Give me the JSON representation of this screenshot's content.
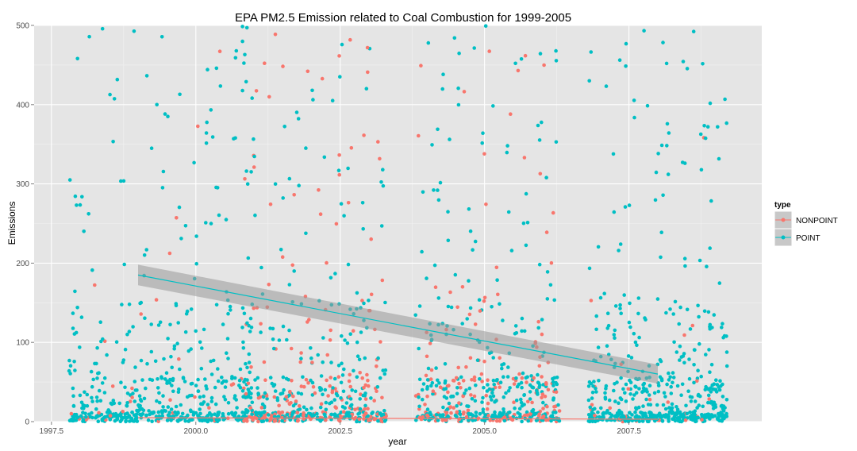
{
  "chart_data": {
    "type": "scatter",
    "title": "EPA PM2.5 Emission related to Coal Combustion for 1999-2005",
    "xlabel": "year",
    "ylabel": "Emissions",
    "xlim": [
      1997.2,
      2009.8
    ],
    "ylim": [
      0,
      500
    ],
    "x_ticks": [
      1997.5,
      2000.0,
      2002.5,
      2005.0,
      2007.5
    ],
    "x_tick_labels": [
      "1997.5",
      "2000.0",
      "2002.5",
      "2005.0",
      "2007.5"
    ],
    "y_ticks": [
      0,
      100,
      200,
      300,
      400,
      500
    ],
    "y_tick_labels": [
      "0",
      "100",
      "200",
      "300",
      "400",
      "500"
    ],
    "grid": true,
    "background": "#e5e5e5",
    "legend": {
      "title": "type",
      "placement": "right",
      "entries": [
        {
          "label": "NONPOINT",
          "color": "#f8766d"
        },
        {
          "label": "POINT",
          "color": "#00bfc4"
        }
      ]
    },
    "point_clusters": [
      {
        "x_range": [
          1997.8,
          2001.0
        ],
        "note_year": 1999
      },
      {
        "x_range": [
          2000.8,
          2003.3
        ],
        "note_year": 2002
      },
      {
        "x_range": [
          2003.8,
          2006.3
        ],
        "note_year": 2005
      },
      {
        "x_range": [
          2006.8,
          2009.2
        ],
        "note_year": 2008
      }
    ],
    "series": [
      {
        "name": "NONPOINT",
        "color": "#f8766d",
        "trend_line": {
          "x": [
            1999,
            2008
          ],
          "y": [
            5,
            3
          ]
        },
        "cluster_share": [
          0.08,
          0.38,
          0.35,
          0.06
        ]
      },
      {
        "name": "POINT",
        "color": "#00bfc4",
        "trend_line": {
          "x": [
            1999,
            2008
          ],
          "y": [
            185,
            60
          ]
        },
        "confidence_band": {
          "x": [
            1999,
            2008
          ],
          "lower": [
            172,
            48
          ],
          "upper": [
            198,
            72
          ]
        },
        "cluster_share": [
          0.92,
          0.62,
          0.65,
          0.94
        ]
      }
    ],
    "band_color": "#999999"
  }
}
